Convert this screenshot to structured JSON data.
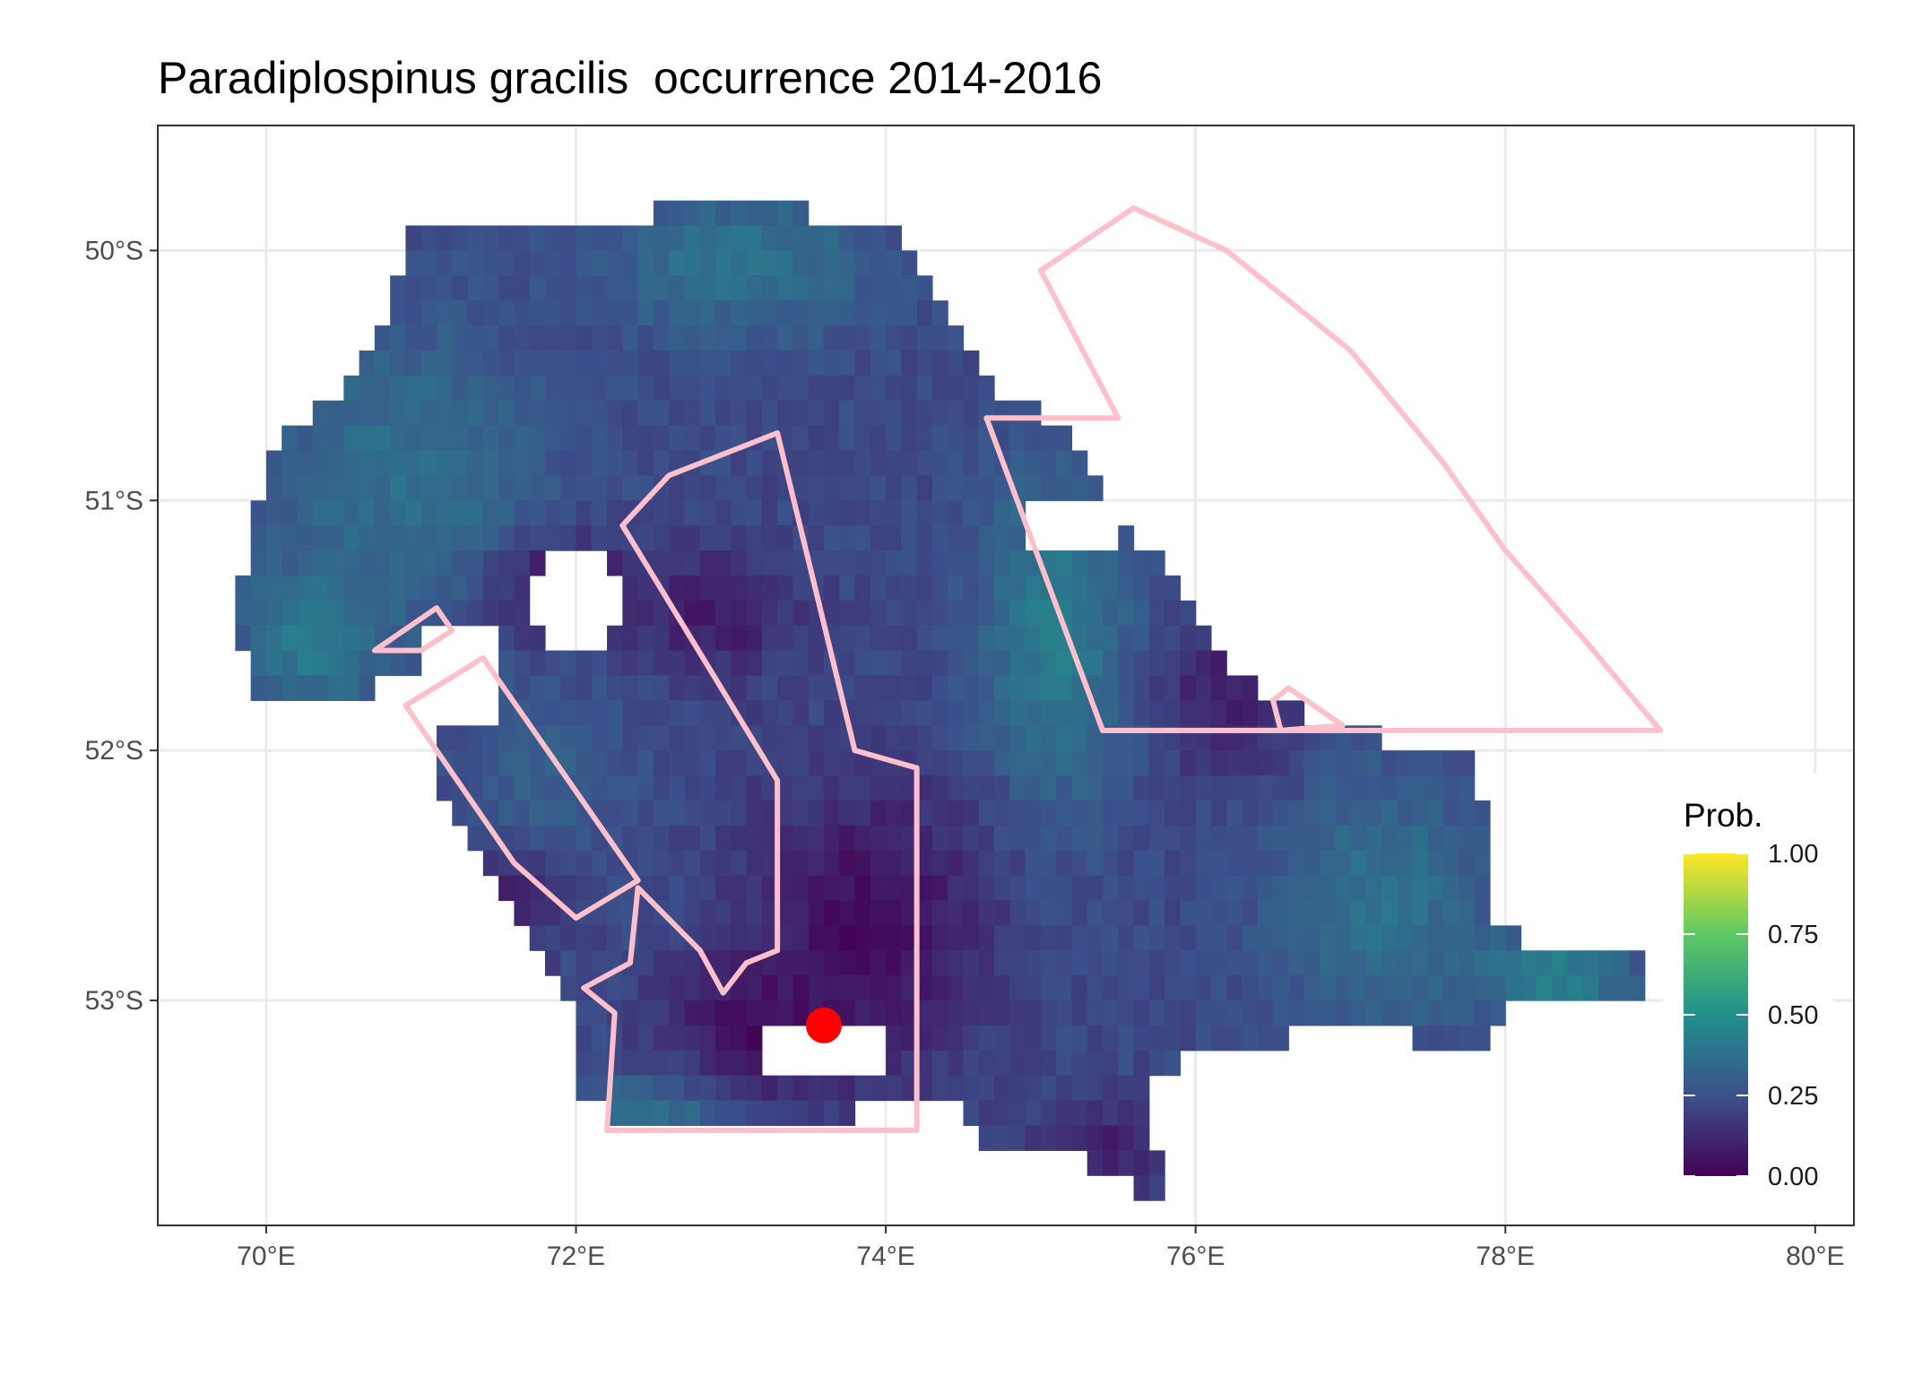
{
  "title": "Paradiplospinus gracilis  occurrence 2014-2016",
  "colors": {
    "panel_border": "#333333",
    "grid": "#ebebeb",
    "outline": "#ffc0cb",
    "point": "#ff0000",
    "viridis": [
      "#440154",
      "#3b528b",
      "#21908c",
      "#5dc863",
      "#fde725"
    ]
  },
  "chart_data": {
    "type": "heatmap",
    "xlim": [
      69.3,
      80.25
    ],
    "ylim": [
      -53.9,
      -49.5
    ],
    "grid": true,
    "x_ticks": [
      {
        "value": 70,
        "label": "70°E"
      },
      {
        "value": 72,
        "label": "72°E"
      },
      {
        "value": 74,
        "label": "74°E"
      },
      {
        "value": 76,
        "label": "76°E"
      },
      {
        "value": 78,
        "label": "78°E"
      },
      {
        "value": 80,
        "label": "80°E"
      }
    ],
    "y_ticks": [
      {
        "value": -50,
        "label": "50°S"
      },
      {
        "value": -51,
        "label": "51°S"
      },
      {
        "value": -52,
        "label": "52°S"
      },
      {
        "value": -53,
        "label": "53°S"
      }
    ],
    "legend": {
      "title": "Prob.",
      "position": "right",
      "range": [
        0,
        1
      ],
      "breaks": [
        {
          "value": 1.0,
          "label": "1.00"
        },
        {
          "value": 0.75,
          "label": "0.75"
        },
        {
          "value": 0.5,
          "label": "0.50"
        },
        {
          "value": 0.25,
          "label": "0.25"
        },
        {
          "value": 0.0,
          "label": "0.00"
        }
      ]
    },
    "raster": {
      "cell_lon": 0.1,
      "cell_lat": 0.1,
      "domain_polygon": [
        [
          71.0,
          49.75
        ],
        [
          72.0,
          49.8
        ],
        [
          73.0,
          49.7
        ],
        [
          74.0,
          49.8
        ],
        [
          74.4,
          50.1
        ],
        [
          74.6,
          50.4
        ],
        [
          75.0,
          50.55
        ],
        [
          75.3,
          50.7
        ],
        [
          75.5,
          51.0
        ],
        [
          75.9,
          51.2
        ],
        [
          76.1,
          51.5
        ],
        [
          76.5,
          51.7
        ],
        [
          77.2,
          51.85
        ],
        [
          77.8,
          51.95
        ],
        [
          77.9,
          52.2
        ],
        [
          77.9,
          52.6
        ],
        [
          78.2,
          52.7
        ],
        [
          78.9,
          52.7
        ],
        [
          78.9,
          52.85
        ],
        [
          78.0,
          52.9
        ],
        [
          77.8,
          53.1
        ],
        [
          77.0,
          53.0
        ],
        [
          76.6,
          53.0
        ],
        [
          76.5,
          53.1
        ],
        [
          76.0,
          53.1
        ],
        [
          75.7,
          53.25
        ],
        [
          75.8,
          53.7
        ],
        [
          75.4,
          53.6
        ],
        [
          75.1,
          53.5
        ],
        [
          74.7,
          53.5
        ],
        [
          74.5,
          53.35
        ],
        [
          74.2,
          53.25
        ],
        [
          73.8,
          53.35
        ],
        [
          73.3,
          53.45
        ],
        [
          72.6,
          53.45
        ],
        [
          72.2,
          53.35
        ],
        [
          71.95,
          53.25
        ],
        [
          72.05,
          53.0
        ],
        [
          71.85,
          52.8
        ],
        [
          71.6,
          52.6
        ],
        [
          71.2,
          52.2
        ],
        [
          71.05,
          51.9
        ],
        [
          71.15,
          51.65
        ],
        [
          70.7,
          51.65
        ],
        [
          69.9,
          51.68
        ],
        [
          69.8,
          51.3
        ],
        [
          69.95,
          50.9
        ],
        [
          70.05,
          50.7
        ],
        [
          70.3,
          50.55
        ],
        [
          70.6,
          50.4
        ]
      ],
      "holes": [
        {
          "center": [
            73.6,
            53.1
          ],
          "radius": [
            0.45,
            0.15
          ]
        },
        {
          "center": [
            71.25,
            51.6
          ],
          "radius": [
            0.3,
            0.22
          ]
        },
        {
          "center": [
            72.0,
            51.3
          ],
          "radius": [
            0.35,
            0.18
          ]
        },
        {
          "center": [
            75.2,
            51.0
          ],
          "radius": [
            0.3,
            0.15
          ]
        }
      ],
      "hotspots": [
        {
          "center": [
            73.05,
            49.95
          ],
          "radius": [
            0.9,
            0.3
          ],
          "value": 0.38
        },
        {
          "center": [
            70.9,
            50.8
          ],
          "radius": [
            0.9,
            0.6
          ],
          "value": 0.37
        },
        {
          "center": [
            70.3,
            51.45
          ],
          "radius": [
            0.45,
            0.3
          ],
          "value": 0.42
        },
        {
          "center": [
            75.1,
            51.45
          ],
          "radius": [
            0.5,
            0.7
          ],
          "value": 0.42
        },
        {
          "center": [
            77.2,
            52.5
          ],
          "radius": [
            0.7,
            0.5
          ],
          "value": 0.38
        },
        {
          "center": [
            78.3,
            52.8
          ],
          "radius": [
            0.5,
            0.15
          ],
          "value": 0.45
        },
        {
          "center": [
            72.5,
            53.35
          ],
          "radius": [
            0.6,
            0.15
          ],
          "value": 0.4
        },
        {
          "center": [
            71.8,
            52.0
          ],
          "radius": [
            0.6,
            0.4
          ],
          "value": 0.3
        }
      ],
      "coldspots": [
        {
          "center": [
            73.9,
            52.6
          ],
          "radius": [
            0.75,
            0.55
          ],
          "value": 0.03
        },
        {
          "center": [
            73.2,
            53.0
          ],
          "radius": [
            0.6,
            0.3
          ],
          "value": 0.04
        },
        {
          "center": [
            71.95,
            51.25
          ],
          "radius": [
            0.5,
            0.2
          ],
          "value": 0.06
        },
        {
          "center": [
            72.9,
            51.35
          ],
          "radius": [
            0.5,
            0.25
          ],
          "value": 0.08
        },
        {
          "center": [
            71.5,
            52.5
          ],
          "radius": [
            0.35,
            0.2
          ],
          "value": 0.08
        },
        {
          "center": [
            76.2,
            51.7
          ],
          "radius": [
            0.45,
            0.3
          ],
          "value": 0.09
        },
        {
          "center": [
            75.4,
            53.5
          ],
          "radius": [
            0.4,
            0.2
          ],
          "value": 0.1
        }
      ]
    },
    "outlines": [
      [
        [
          75.6,
          49.83
        ],
        [
          76.2,
          50.0
        ],
        [
          77.0,
          50.4
        ],
        [
          77.6,
          50.85
        ],
        [
          78.0,
          51.2
        ],
        [
          78.5,
          51.55
        ],
        [
          79.0,
          51.92
        ],
        [
          75.4,
          51.92
        ],
        [
          74.65,
          50.67
        ],
        [
          75.5,
          50.67
        ],
        [
          75.0,
          50.08
        ]
      ],
      [
        [
          73.3,
          50.73
        ],
        [
          73.8,
          52.0
        ],
        [
          74.2,
          52.07
        ],
        [
          74.2,
          53.52
        ],
        [
          72.2,
          53.52
        ],
        [
          72.25,
          53.05
        ],
        [
          72.05,
          52.95
        ],
        [
          72.35,
          52.85
        ],
        [
          72.4,
          52.55
        ],
        [
          72.8,
          52.8
        ],
        [
          72.95,
          52.97
        ],
        [
          73.1,
          52.85
        ],
        [
          73.3,
          52.8
        ],
        [
          73.3,
          52.12
        ],
        [
          72.3,
          51.1
        ],
        [
          72.6,
          50.9
        ]
      ],
      [
        [
          71.4,
          51.63
        ],
        [
          72.4,
          52.52
        ],
        [
          72.0,
          52.67
        ],
        [
          71.6,
          52.45
        ],
        [
          70.9,
          51.82
        ]
      ],
      [
        [
          70.7,
          51.6
        ],
        [
          71.1,
          51.43
        ],
        [
          71.2,
          51.52
        ],
        [
          71.0,
          51.6
        ]
      ],
      [
        [
          76.5,
          51.8
        ],
        [
          76.6,
          51.75
        ],
        [
          76.95,
          51.9
        ],
        [
          76.55,
          51.92
        ]
      ]
    ],
    "point": {
      "lon": 73.6,
      "lat": -53.1
    }
  }
}
